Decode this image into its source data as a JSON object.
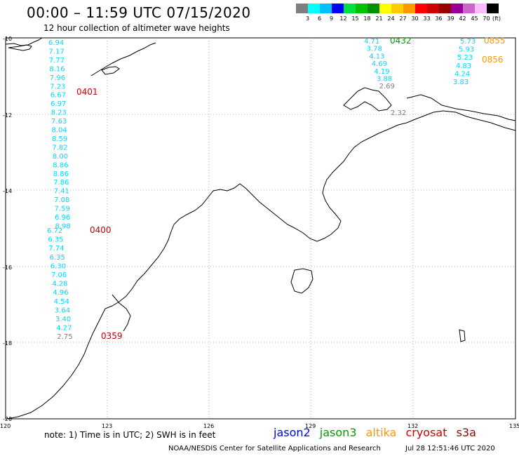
{
  "title": "00:00 – 11:59 UTC 07/15/2020",
  "subtitle": "12 hour collection of altimeter wave heights",
  "legend": {
    "labels": [
      "3",
      "6",
      "9",
      "12",
      "15",
      "18",
      "21",
      "24",
      "27",
      "30",
      "33",
      "36",
      "39",
      "42",
      "45",
      "70"
    ],
    "unit": "(ft)",
    "colors": [
      "#7f7f7f",
      "#00ffff",
      "#00c0ff",
      "#0000ff",
      "#00e040",
      "#00c000",
      "#009000",
      "#ffff00",
      "#ffcc00",
      "#ff9900",
      "#ff0000",
      "#cc0000",
      "#990000",
      "#990099",
      "#cc66cc",
      "#ffbbff",
      "#000000"
    ]
  },
  "axes": {
    "lat_labels": [
      "-10",
      "-12",
      "-14",
      "-16",
      "-18",
      "-20"
    ],
    "lon_labels": [
      "120",
      "123",
      "126",
      "129",
      "132",
      "135"
    ]
  },
  "tracks": [
    {
      "satellite": "cryosat",
      "time": "0401",
      "values": [
        "6.94",
        "7.17",
        "7.77",
        "8.16",
        "7.96",
        "7.23",
        "6.67",
        "6.97",
        "8.23",
        "7.63",
        "8.04",
        "8.59",
        "7.82",
        "8.00",
        "8.86",
        "8.86",
        "7.86",
        "7.41",
        "7.08",
        "7.59",
        "6.96",
        "8.98"
      ]
    },
    {
      "satellite": "cryosat",
      "time": "0400",
      "values": [
        "6.72",
        "6.35",
        "7.74",
        "6.35",
        "6.30",
        "7.06",
        "4.28",
        "4.96",
        "4.54",
        "3.64",
        "3.40",
        "4.27",
        "2.75"
      ]
    },
    {
      "satellite": "cryosat",
      "time": "0359",
      "values": []
    },
    {
      "satellite": "jason3",
      "time": "0432",
      "values": [
        "4.71",
        "3.78",
        "4.13",
        "4.69",
        "4.19",
        "3.88",
        "2.69",
        "2.32"
      ]
    },
    {
      "satellite": "altika",
      "time": "0855",
      "values": [
        "5.73",
        "5.93",
        "5.23",
        "4.83",
        "4.24",
        "3.83"
      ]
    },
    {
      "satellite": "altika",
      "time": "0856",
      "values": []
    }
  ],
  "value_colors": {
    "low": "#7f7f7f",
    "mid": "#00d8ff"
  },
  "note": "note: 1) Time is in UTC; 2) SWH is in feet",
  "satellites": [
    {
      "name": "jason2",
      "color": "#0000ff"
    },
    {
      "name": "jason3",
      "color": "#00a000"
    },
    {
      "name": "altika",
      "color": "#ff9900"
    },
    {
      "name": "cryosat",
      "color": "#cc0000"
    },
    {
      "name": "s3a",
      "color": "#990000"
    }
  ],
  "credit": "NOAA/NESDIS Center for Satellite Applications and Research",
  "timestamp": "Jul 28 12:51:46 UTC 2020"
}
